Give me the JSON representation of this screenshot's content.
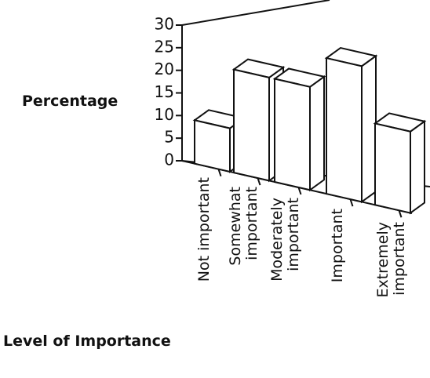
{
  "chart_data": {
    "type": "bar3d",
    "ylabel": "Percentage",
    "xlabel": "Level of Importance",
    "categories": [
      "Not important",
      "Somewhat important",
      "Moderately important",
      "Important",
      "Extremely important"
    ],
    "values": [
      8,
      19,
      19,
      25,
      15
    ],
    "color": "#ffffff",
    "ylim": [
      0,
      30
    ],
    "yticks": [
      0,
      5,
      10,
      15,
      20,
      25,
      30
    ]
  }
}
